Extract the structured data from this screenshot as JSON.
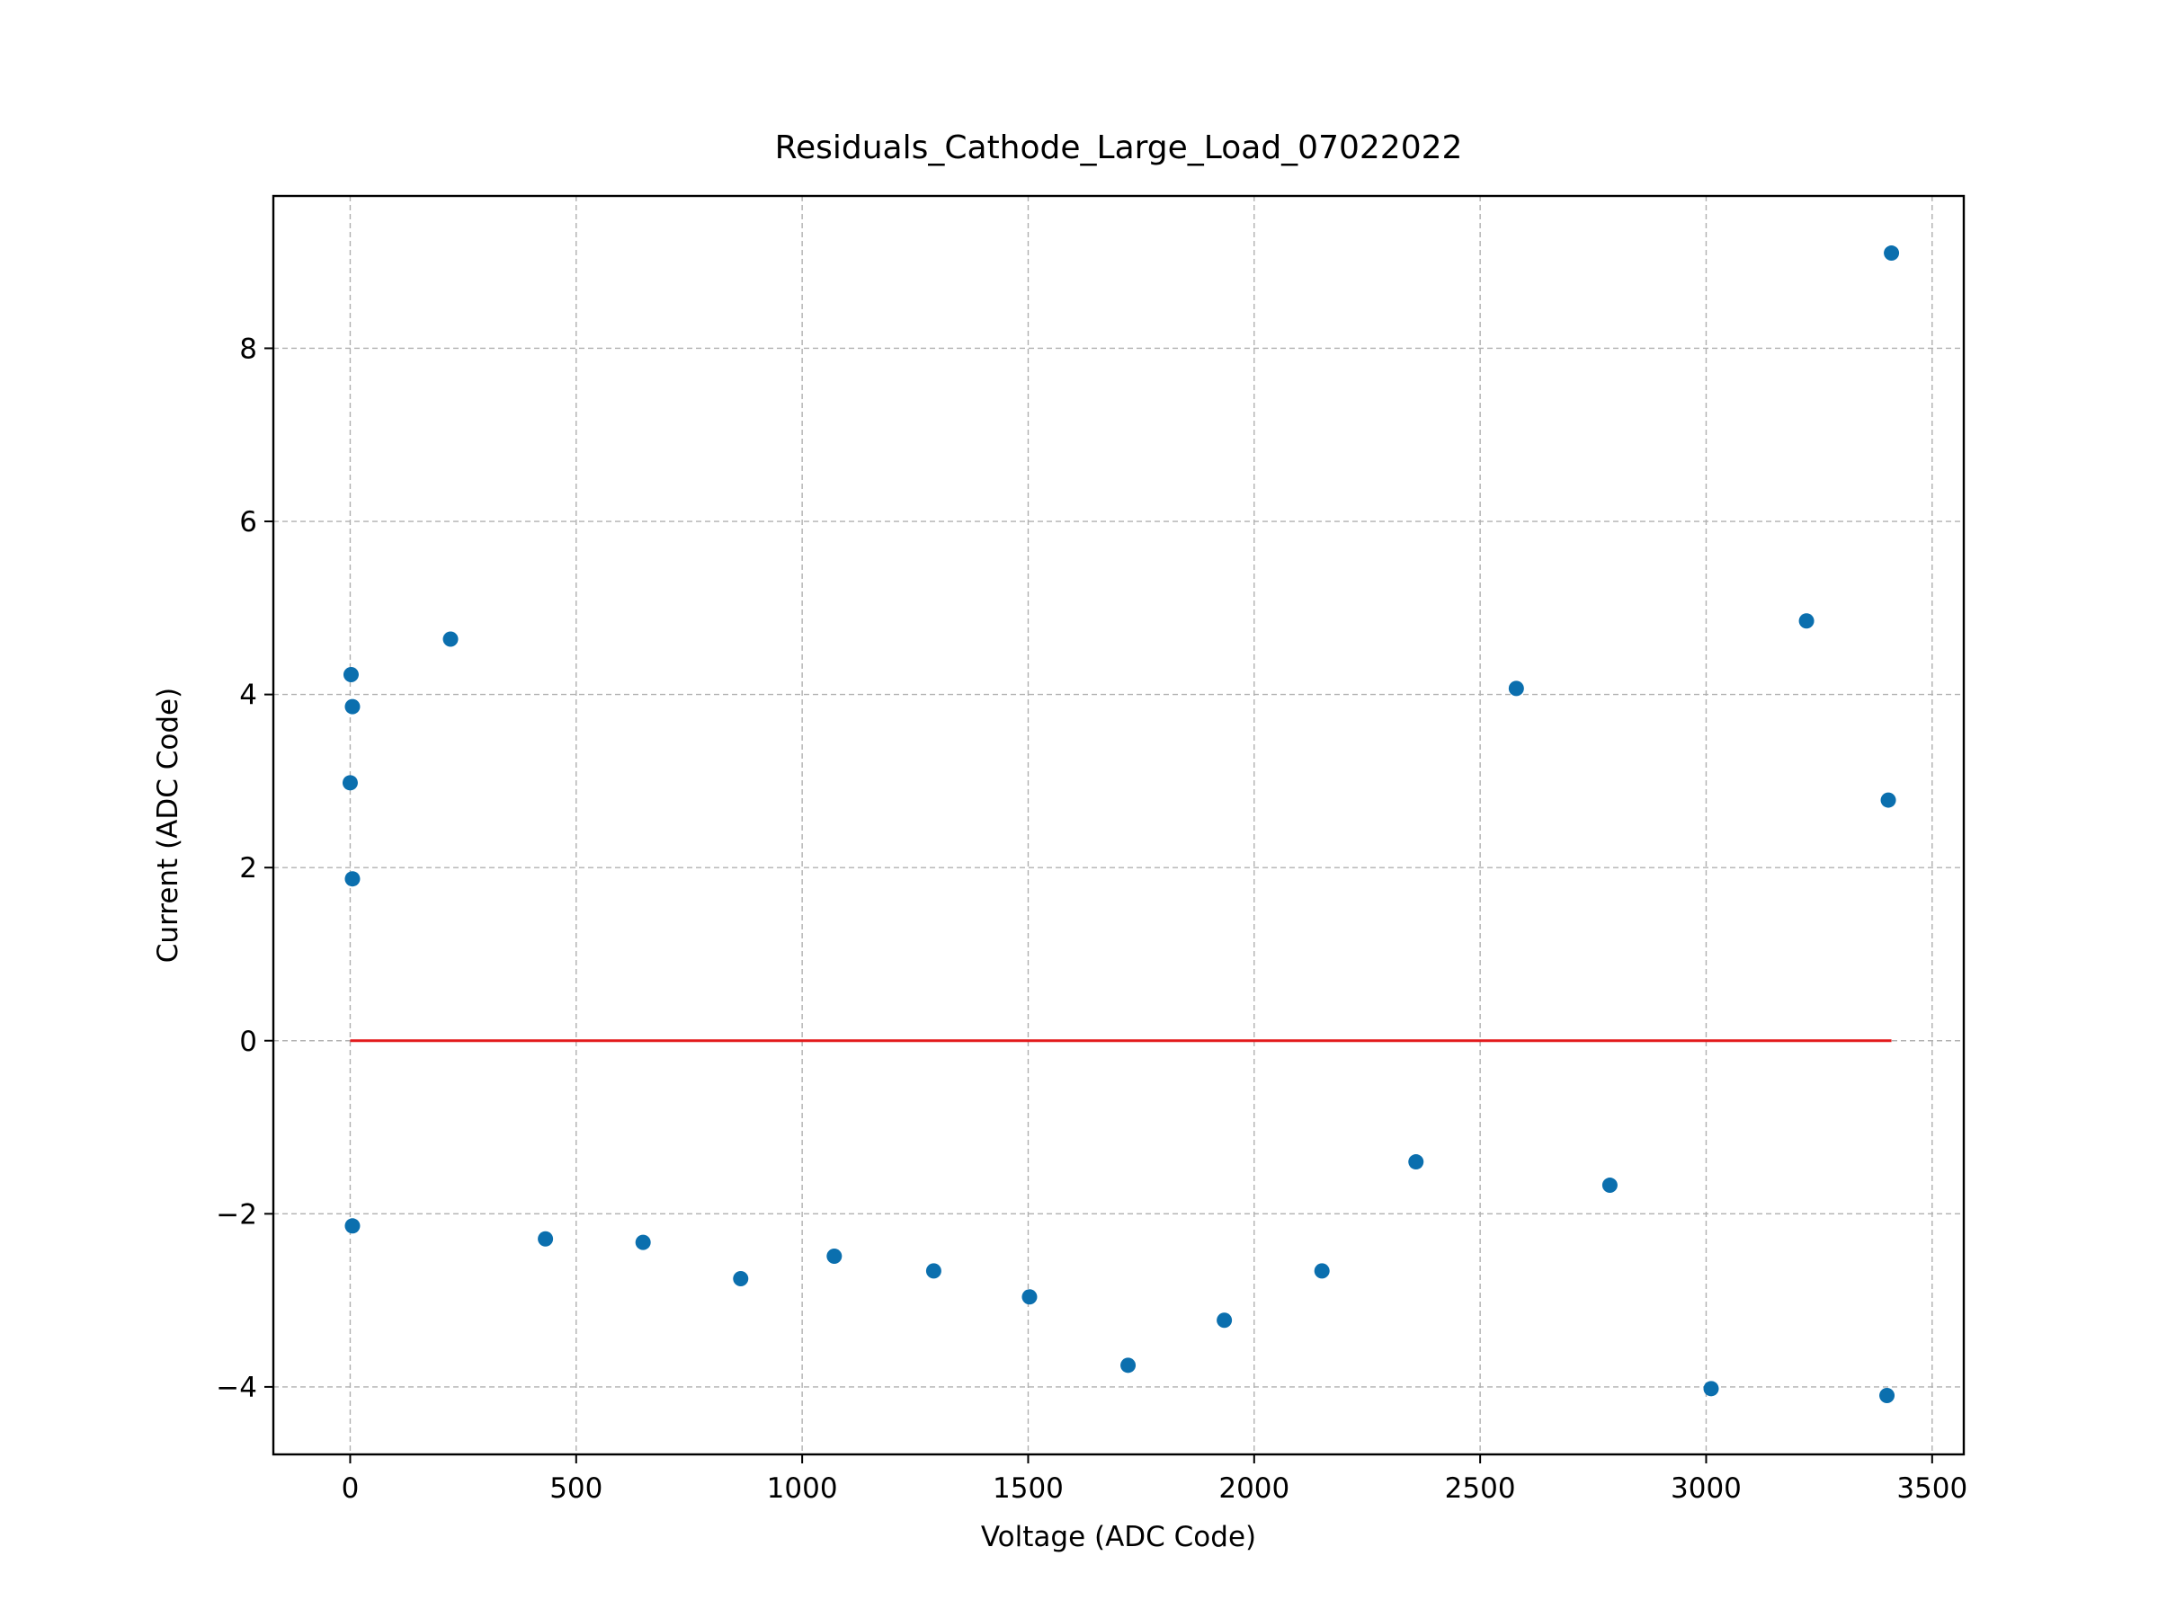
{
  "chart_data": {
    "type": "scatter",
    "title": "Residuals_Cathode_Large_Load_07022022",
    "xlabel": "Voltage (ADC Code)",
    "ylabel": "Current (ADC Code)",
    "xlim": [
      -170,
      3570
    ],
    "ylim": [
      -4.78,
      9.76
    ],
    "xticks": [
      0,
      500,
      1000,
      1500,
      2000,
      2500,
      3000,
      3500
    ],
    "xtick_labels": [
      "0",
      "500",
      "1000",
      "1500",
      "2000",
      "2500",
      "3000",
      "3500"
    ],
    "yticks": [
      -4,
      -2,
      0,
      2,
      4,
      6,
      8
    ],
    "ytick_labels": [
      "−4",
      "−2",
      "0",
      "2",
      "4",
      "6",
      "8"
    ],
    "grid": true,
    "series": [
      {
        "type": "scatter",
        "color": "#0b6fae",
        "points": [
          {
            "x": 2,
            "y": 4.23
          },
          {
            "x": 5,
            "y": 3.86
          },
          {
            "x": 0,
            "y": 2.98
          },
          {
            "x": 5,
            "y": 1.87
          },
          {
            "x": 5,
            "y": -2.14
          },
          {
            "x": 222,
            "y": 4.64
          },
          {
            "x": 432,
            "y": -2.29
          },
          {
            "x": 648,
            "y": -2.33
          },
          {
            "x": 864,
            "y": -2.75
          },
          {
            "x": 1071,
            "y": -2.49
          },
          {
            "x": 1291,
            "y": -2.66
          },
          {
            "x": 1503,
            "y": -2.96
          },
          {
            "x": 1721,
            "y": -3.75
          },
          {
            "x": 1934,
            "y": -3.23
          },
          {
            "x": 2150,
            "y": -2.66
          },
          {
            "x": 2358,
            "y": -1.4
          },
          {
            "x": 2580,
            "y": 4.07
          },
          {
            "x": 2787,
            "y": -1.67
          },
          {
            "x": 3011,
            "y": -4.02
          },
          {
            "x": 3222,
            "y": 4.85
          },
          {
            "x": 3400,
            "y": -4.1
          },
          {
            "x": 3403,
            "y": 2.78
          },
          {
            "x": 3410,
            "y": 9.1
          }
        ]
      },
      {
        "type": "line",
        "color": "#e31a1c",
        "x": [
          0,
          3410
        ],
        "y": [
          0,
          0
        ]
      }
    ]
  }
}
